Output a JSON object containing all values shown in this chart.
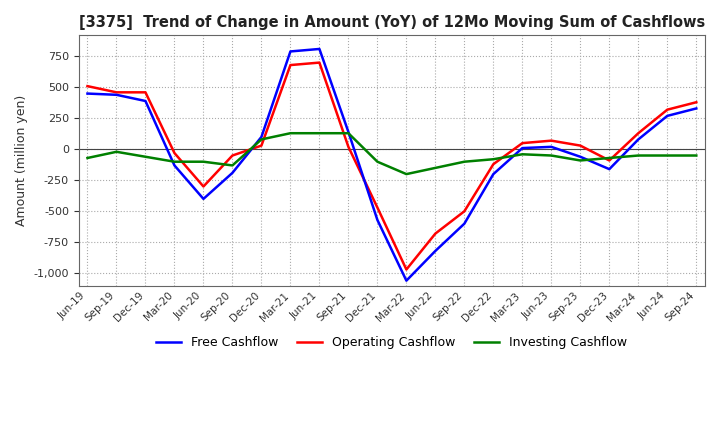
{
  "title": "[3375]  Trend of Change in Amount (YoY) of 12Mo Moving Sum of Cashflows",
  "ylabel": "Amount (million yen)",
  "ylim": [
    -1100,
    920
  ],
  "yticks": [
    -1000,
    -750,
    -500,
    -250,
    0,
    250,
    500,
    750
  ],
  "background_color": "#ffffff",
  "grid_color": "#aaaaaa",
  "x_labels": [
    "Jun-19",
    "Sep-19",
    "Dec-19",
    "Mar-20",
    "Jun-20",
    "Sep-20",
    "Dec-20",
    "Mar-21",
    "Jun-21",
    "Sep-21",
    "Dec-21",
    "Mar-22",
    "Jun-22",
    "Sep-22",
    "Dec-22",
    "Mar-23",
    "Jun-23",
    "Sep-23",
    "Dec-23",
    "Mar-24",
    "Jun-24",
    "Sep-24"
  ],
  "operating": [
    510,
    460,
    460,
    -30,
    -300,
    -50,
    30,
    680,
    700,
    20,
    -470,
    -970,
    -680,
    -500,
    -120,
    50,
    70,
    30,
    -90,
    130,
    320,
    380
  ],
  "investing": [
    -70,
    -20,
    -60,
    -100,
    -100,
    -130,
    80,
    130,
    130,
    130,
    -100,
    -200,
    -150,
    -100,
    -80,
    -40,
    -50,
    -90,
    -70,
    -50,
    -50,
    -50
  ],
  "free": [
    450,
    440,
    390,
    -130,
    -400,
    -190,
    100,
    790,
    810,
    140,
    -570,
    -1060,
    -820,
    -600,
    -200,
    10,
    20,
    -60,
    -160,
    80,
    270,
    330
  ],
  "line_colors": {
    "operating": "#ff0000",
    "investing": "#008000",
    "free": "#0000ff"
  },
  "legend_labels": {
    "operating": "Operating Cashflow",
    "investing": "Investing Cashflow",
    "free": "Free Cashflow"
  }
}
